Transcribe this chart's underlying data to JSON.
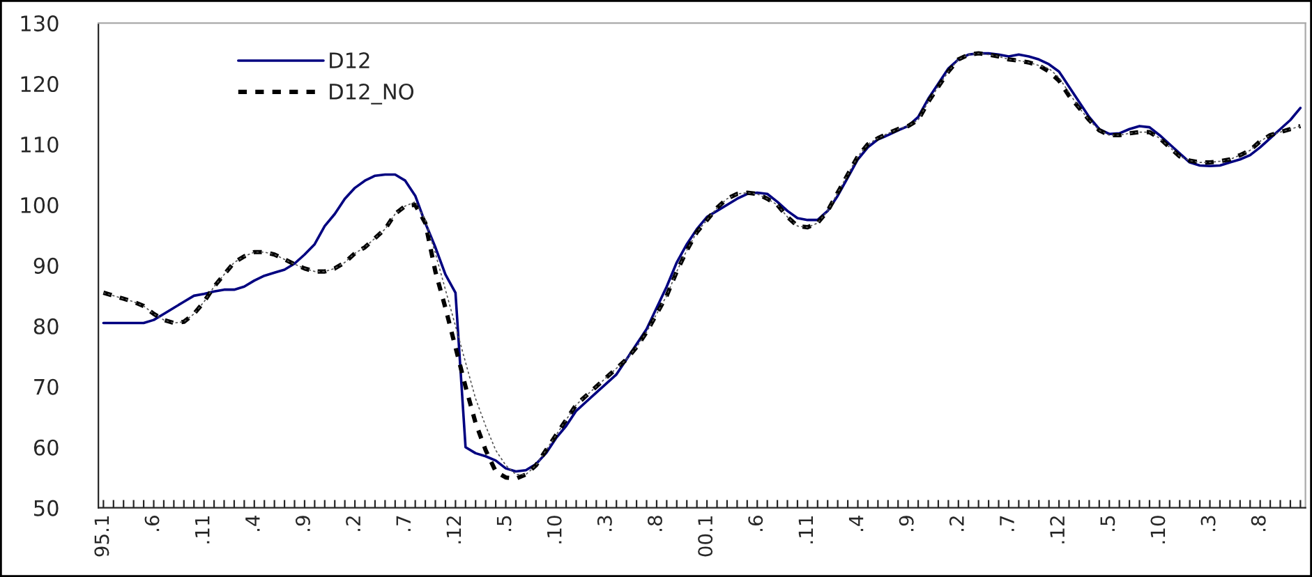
{
  "chart_data": {
    "type": "line",
    "categories": [
      "95.1",
      null,
      null,
      null,
      null,
      ".6",
      null,
      null,
      null,
      null,
      ".11",
      null,
      null,
      null,
      null,
      ".4",
      null,
      null,
      null,
      null,
      ".9",
      null,
      null,
      null,
      null,
      ".2",
      null,
      null,
      null,
      null,
      ".7",
      null,
      null,
      null,
      null,
      ".12",
      null,
      null,
      null,
      null,
      ".5",
      null,
      null,
      null,
      null,
      ".10",
      null,
      null,
      null,
      null,
      ".3",
      null,
      null,
      null,
      null,
      ".8",
      null,
      null,
      null,
      null,
      "00.1",
      null,
      null,
      null,
      null,
      ".6",
      null,
      null,
      null,
      null,
      ".11",
      null,
      null,
      null,
      null,
      ".4",
      null,
      null,
      null,
      null,
      ".9",
      null,
      null,
      null,
      null,
      ".2",
      null,
      null,
      null,
      null,
      ".7",
      null,
      null,
      null,
      null,
      ".12",
      null,
      null,
      null,
      null,
      ".5",
      null,
      null,
      null,
      null,
      ".10",
      null,
      null,
      null,
      null,
      ".3",
      null,
      null,
      null,
      null,
      ".8",
      null,
      null,
      null,
      null
    ],
    "series": [
      {
        "name": "D12",
        "color": "#000080",
        "line_style": "solid",
        "values": [
          80.5,
          80.5,
          80.5,
          80.5,
          80.5,
          81,
          82,
          83,
          84,
          85,
          85.3,
          85.7,
          86,
          86,
          86.5,
          87.5,
          88.3,
          88.8,
          89.3,
          90.3,
          91.8,
          93.5,
          96.5,
          98.5,
          101,
          102.8,
          104,
          104.8,
          105,
          105,
          104,
          101.5,
          97,
          93,
          88.5,
          85.5,
          60,
          59,
          58.5,
          57.8,
          56.5,
          56,
          56.2,
          57.2,
          59,
          61.5,
          63.5,
          66,
          67.5,
          69,
          70.5,
          72,
          74.5,
          77,
          79.5,
          83,
          86.5,
          90.5,
          93.5,
          96,
          98,
          99,
          100,
          101,
          101.8,
          102,
          101.8,
          100.5,
          99,
          97.8,
          97.5,
          97.5,
          99,
          101.5,
          104.5,
          107.5,
          109.5,
          110.8,
          111.5,
          112.3,
          113,
          114.5,
          117.5,
          120,
          122.5,
          124,
          124.8,
          125,
          125,
          124.8,
          124.5,
          124.8,
          124.5,
          124,
          123.2,
          122,
          119.5,
          117,
          114.5,
          112.5,
          111.7,
          111.8,
          112.5,
          113,
          112.8,
          111.5,
          110,
          108.5,
          107,
          106.5,
          106.4,
          106.5,
          107,
          107.5,
          108.2,
          109.5,
          111,
          112.5,
          114,
          116
        ]
      },
      {
        "name": "D12_NO",
        "color": "#000000",
        "line_style": "dashed",
        "values": [
          85.5,
          85,
          84.5,
          84,
          83.3,
          82,
          81,
          80.5,
          80.7,
          82,
          84,
          86.5,
          88.5,
          90.5,
          91.5,
          92.2,
          92.2,
          91.8,
          91,
          90.2,
          89.5,
          89,
          89,
          89.5,
          90.5,
          92,
          93,
          94.5,
          96,
          98.5,
          99.8,
          100,
          97,
          89,
          83,
          76.5,
          70,
          64,
          59.5,
          56,
          55,
          54.8,
          55.5,
          57,
          59.5,
          62,
          64.5,
          67,
          68.5,
          70,
          71.5,
          73,
          74.5,
          76.5,
          79,
          82,
          85,
          89,
          92.5,
          95.5,
          97.5,
          99.5,
          101,
          101.8,
          102,
          101.8,
          101,
          100,
          98,
          96.5,
          96.3,
          97,
          99,
          102,
          105,
          108,
          110,
          111,
          111.8,
          112.5,
          113,
          114,
          117,
          119.5,
          122,
          124,
          124.8,
          125,
          124.8,
          124.5,
          124,
          123.8,
          123.5,
          123,
          122,
          120.5,
          118,
          116,
          114,
          112.3,
          111.5,
          111.5,
          111.8,
          112,
          112,
          111,
          109.5,
          108,
          107.3,
          107,
          107,
          107.2,
          107.5,
          108.2,
          109,
          110.5,
          111.5,
          112,
          112.5,
          113
        ]
      },
      {
        "color": "#555555",
        "line_style": "dashed",
        "values": [
          85.5,
          85,
          84.5,
          84,
          83.3,
          82,
          81,
          80.5,
          80.7,
          82,
          84,
          86.5,
          88.5,
          90.5,
          91.5,
          92.2,
          92.2,
          91.8,
          91,
          90.2,
          89.5,
          89,
          89,
          89.5,
          90.5,
          92,
          93,
          94.5,
          96,
          98.5,
          99.8,
          100.5,
          97.5,
          92,
          86,
          80,
          74,
          68,
          63.5,
          59.5,
          57,
          55.5,
          55.5,
          57,
          59.5,
          62,
          64.5,
          67,
          68.5,
          70,
          71.5,
          73,
          74.5,
          76.5,
          79,
          82,
          85,
          89,
          92.5,
          95.5,
          97.5,
          99.5,
          101,
          101.8,
          102,
          101.8,
          101,
          100,
          98,
          96.5,
          96.3,
          97,
          99,
          102,
          105,
          108,
          110,
          111,
          111.8,
          112.5,
          113,
          114,
          117,
          119.5,
          122,
          124,
          124.8,
          125,
          124.8,
          124.5,
          124,
          123.8,
          123.5,
          123,
          122.5,
          121,
          118.5,
          116,
          114,
          112.3,
          111.5,
          111.5,
          111.8,
          112,
          112,
          111,
          109.5,
          108,
          107.3,
          107,
          107,
          107.2,
          107.5,
          108.2,
          109,
          110.5,
          111.5,
          112,
          112.5,
          113
        ]
      }
    ],
    "ylim": [
      50,
      130
    ],
    "yticks": [
      50,
      60,
      70,
      80,
      90,
      100,
      110,
      120,
      130
    ],
    "grid": false,
    "legend": "top left"
  }
}
